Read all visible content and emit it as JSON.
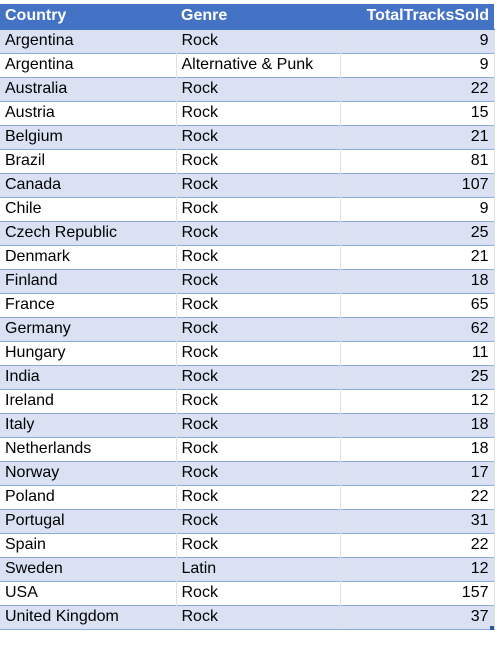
{
  "table": {
    "headers": [
      "Country",
      "Genre",
      "TotalTracksSold"
    ],
    "rows": [
      [
        "Argentina",
        "Rock",
        "9"
      ],
      [
        "Argentina",
        "Alternative & Punk",
        "9"
      ],
      [
        "Australia",
        "Rock",
        "22"
      ],
      [
        "Austria",
        "Rock",
        "15"
      ],
      [
        "Belgium",
        "Rock",
        "21"
      ],
      [
        "Brazil",
        "Rock",
        "81"
      ],
      [
        "Canada",
        "Rock",
        "107"
      ],
      [
        "Chile",
        "Rock",
        "9"
      ],
      [
        "Czech Republic",
        "Rock",
        "25"
      ],
      [
        "Denmark",
        "Rock",
        "21"
      ],
      [
        "Finland",
        "Rock",
        "18"
      ],
      [
        "France",
        "Rock",
        "65"
      ],
      [
        "Germany",
        "Rock",
        "62"
      ],
      [
        "Hungary",
        "Rock",
        "11"
      ],
      [
        "India",
        "Rock",
        "25"
      ],
      [
        "Ireland",
        "Rock",
        "12"
      ],
      [
        "Italy",
        "Rock",
        "18"
      ],
      [
        "Netherlands",
        "Rock",
        "18"
      ],
      [
        "Norway",
        "Rock",
        "17"
      ],
      [
        "Poland",
        "Rock",
        "22"
      ],
      [
        "Portugal",
        "Rock",
        "31"
      ],
      [
        "Spain",
        "Rock",
        "22"
      ],
      [
        "Sweden",
        "Latin",
        "12"
      ],
      [
        "USA",
        "Rock",
        "157"
      ],
      [
        "United Kingdom",
        "Rock",
        "37"
      ]
    ]
  },
  "colors": {
    "header_bg": "#4472c4",
    "band_bg": "#d9e1f2",
    "row_border": "#8ea9db"
  }
}
